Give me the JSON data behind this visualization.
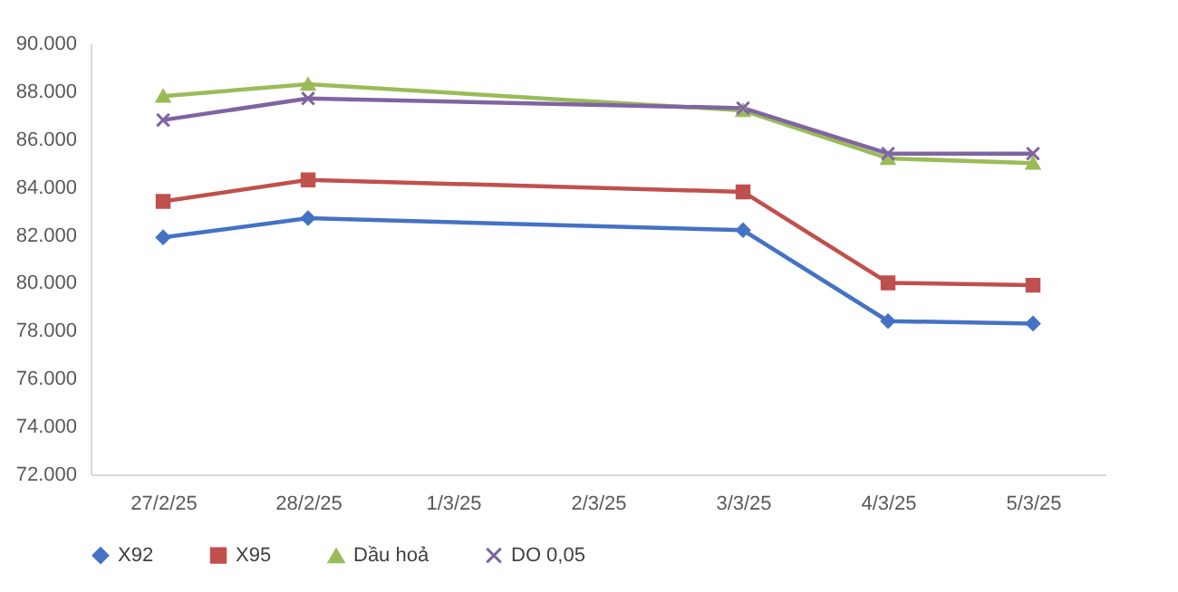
{
  "chart_data": {
    "type": "line",
    "x": [
      "--02-27",
      "--02-28",
      "--03-03",
      "--03-04",
      "--03-05"
    ],
    "xlim": [
      "--02-26T12:00",
      "--03-05T12:00"
    ],
    "xticks": [
      {
        "value": "--02-27",
        "label": "27/2/25"
      },
      {
        "value": "--02-28",
        "label": "28/2/25"
      },
      {
        "value": "--03-01",
        "label": "1/3/25"
      },
      {
        "value": "--03-02",
        "label": "2/3/25"
      },
      {
        "value": "--03-03",
        "label": "3/3/25"
      },
      {
        "value": "--03-04",
        "label": "4/3/25"
      },
      {
        "value": "--03-05",
        "label": "5/3/25"
      }
    ],
    "ylim": [
      72,
      90
    ],
    "yticks": [
      {
        "value": 72,
        "label": "72.000"
      },
      {
        "value": 74,
        "label": "74.000"
      },
      {
        "value": 76,
        "label": "76.000"
      },
      {
        "value": 78,
        "label": "78.000"
      },
      {
        "value": 80,
        "label": "80.000"
      },
      {
        "value": 82,
        "label": "82.000"
      },
      {
        "value": 84,
        "label": "84.000"
      },
      {
        "value": 86,
        "label": "86.000"
      },
      {
        "value": 88,
        "label": "88.000"
      },
      {
        "value": 90,
        "label": "90.000"
      }
    ],
    "series": [
      {
        "name": "X92",
        "color": "#4472c4",
        "marker": "diamond",
        "values": [
          81.9,
          82.7,
          82.2,
          78.4,
          78.3
        ]
      },
      {
        "name": "X95",
        "color": "#c0504d",
        "marker": "square",
        "values": [
          83.4,
          84.3,
          83.8,
          80.0,
          79.9
        ]
      },
      {
        "name": "Dầu hoả",
        "color": "#9bbb59",
        "marker": "triangle",
        "values": [
          87.8,
          88.3,
          87.2,
          85.2,
          85.0
        ]
      },
      {
        "name": "DO 0,05",
        "color": "#8064a2",
        "marker": "cross",
        "values": [
          86.8,
          87.7,
          87.3,
          85.4,
          85.4
        ]
      }
    ],
    "legend": "bottom",
    "grid": false
  }
}
